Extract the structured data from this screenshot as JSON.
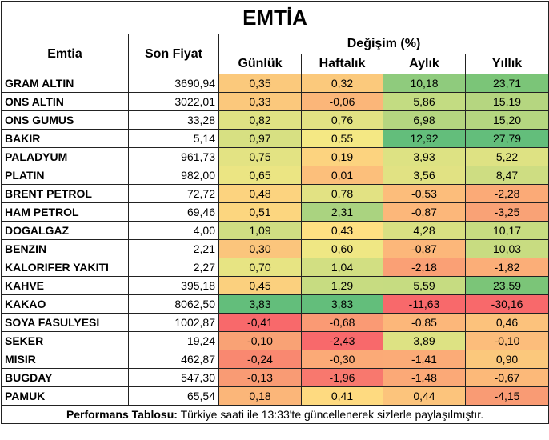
{
  "title": "EMTİA",
  "headers": {
    "commodity": "Emtia",
    "price": "Son Fiyat",
    "change_group": "Değişim (%)",
    "daily": "Günlük",
    "weekly": "Haftalık",
    "monthly": "Aylık",
    "yearly": "Yıllık"
  },
  "rows": [
    {
      "name": "GRAM ALTIN",
      "price": "3690,94",
      "daily": "0,35",
      "weekly": "0,32",
      "monthly": "10,18",
      "yearly": "23,71",
      "colors": [
        "#fbc97c",
        "#fbc97c",
        "#8fcb7d",
        "#7bc578"
      ]
    },
    {
      "name": "ONS ALTIN",
      "price": "3022,01",
      "daily": "0,33",
      "weekly": "-0,06",
      "monthly": "5,86",
      "yearly": "15,19",
      "colors": [
        "#fbc87c",
        "#fbb679",
        "#c3dc82",
        "#b5d680"
      ]
    },
    {
      "name": "ONS GUMUS",
      "price": "33,28",
      "daily": "0,82",
      "weekly": "0,76",
      "monthly": "6,98",
      "yearly": "15,20",
      "colors": [
        "#dfe283",
        "#e2e283",
        "#b5d680",
        "#b5d680"
      ]
    },
    {
      "name": "BAKIR",
      "price": "5,14",
      "daily": "0,97",
      "weekly": "0,55",
      "monthly": "12,92",
      "yearly": "27,79",
      "colors": [
        "#d7e082",
        "#f4e884",
        "#63be7b",
        "#63be7b"
      ]
    },
    {
      "name": "PALADYUM",
      "price": "961,73",
      "daily": "0,75",
      "weekly": "0,19",
      "monthly": "3,93",
      "yearly": "5,22",
      "colors": [
        "#e3e383",
        "#fcd37f",
        "#dde283",
        "#dee283"
      ]
    },
    {
      "name": "PLATIN",
      "price": "982,00",
      "daily": "0,65",
      "weekly": "0,01",
      "monthly": "3,56",
      "yearly": "8,47",
      "colors": [
        "#ebe583",
        "#fcbf7b",
        "#e1e283",
        "#cedd82"
      ]
    },
    {
      "name": "BRENT PETROL",
      "price": "72,72",
      "daily": "0,48",
      "weekly": "0,78",
      "monthly": "-0,53",
      "yearly": "-2,28",
      "colors": [
        "#fcd37f",
        "#e2e283",
        "#fcbd7b",
        "#fbaa77"
      ]
    },
    {
      "name": "HAM PETROL",
      "price": "69,46",
      "daily": "0,51",
      "weekly": "2,31",
      "monthly": "-0,87",
      "yearly": "-3,25",
      "colors": [
        "#fcd67f",
        "#aad380",
        "#fcb77a",
        "#f9a276"
      ]
    },
    {
      "name": "DOGALGAZ",
      "price": "4,00",
      "daily": "1,09",
      "weekly": "0,43",
      "monthly": "4,28",
      "yearly": "10,17",
      "colors": [
        "#d0de82",
        "#fee082",
        "#d8e082",
        "#c7dc81"
      ]
    },
    {
      "name": "BENZIN",
      "price": "2,21",
      "daily": "0,30",
      "weekly": "0,60",
      "monthly": "-0,87",
      "yearly": "10,03",
      "colors": [
        "#fbc57c",
        "#efe784",
        "#fcb77a",
        "#c8dc81"
      ]
    },
    {
      "name": "KALORIFER YAKITI",
      "price": "2,27",
      "daily": "0,70",
      "weekly": "1,04",
      "monthly": "-2,18",
      "yearly": "-1,82",
      "colors": [
        "#e7e483",
        "#d2df82",
        "#faa075",
        "#fbae78"
      ]
    },
    {
      "name": "KAHVE",
      "price": "395,18",
      "daily": "0,45",
      "weekly": "1,29",
      "monthly": "5,59",
      "yearly": "23,59",
      "colors": [
        "#fbd07e",
        "#c7dc81",
        "#c6dc81",
        "#7bc578"
      ]
    },
    {
      "name": "KAKAO",
      "price": "8062,50",
      "daily": "3,83",
      "weekly": "3,83",
      "monthly": "-11,63",
      "yearly": "-30,16",
      "colors": [
        "#63be7b",
        "#63be7b",
        "#f8696b",
        "#f8696b"
      ]
    },
    {
      "name": "SOYA FASULYESI",
      "price": "1002,87",
      "daily": "-0,41",
      "weekly": "-0,68",
      "monthly": "-0,85",
      "yearly": "0,46",
      "colors": [
        "#f8696b",
        "#fa9a74",
        "#fcb77a",
        "#fcc27c"
      ]
    },
    {
      "name": "SEKER",
      "price": "19,24",
      "daily": "-0,10",
      "weekly": "-2,43",
      "monthly": "3,89",
      "yearly": "-0,10",
      "colors": [
        "#f9a275",
        "#f8696b",
        "#dde283",
        "#fcbd7b"
      ]
    },
    {
      "name": "MISIR",
      "price": "462,87",
      "daily": "-0,24",
      "weekly": "-0,30",
      "monthly": "-1,41",
      "yearly": "0,90",
      "colors": [
        "#f98870",
        "#fbaa77",
        "#fbab77",
        "#fbc87c"
      ]
    },
    {
      "name": "BUGDAY",
      "price": "547,30",
      "daily": "-0,13",
      "weekly": "-1,96",
      "monthly": "-1,48",
      "yearly": "-0,67",
      "colors": [
        "#f99b74",
        "#f8786e",
        "#fba977",
        "#fcb979"
      ]
    },
    {
      "name": "PAMUK",
      "price": "65,54",
      "daily": "0,18",
      "weekly": "0,41",
      "monthly": "0,44",
      "yearly": "-4,15",
      "colors": [
        "#fbb679",
        "#feda80",
        "#fcc47c",
        "#f99b74"
      ]
    }
  ],
  "footer": {
    "label": "Performans Tablosu:",
    "text": " Türkiye saati ile 13:33'te güncellenerek sizlerle paylaşılmıştır."
  }
}
